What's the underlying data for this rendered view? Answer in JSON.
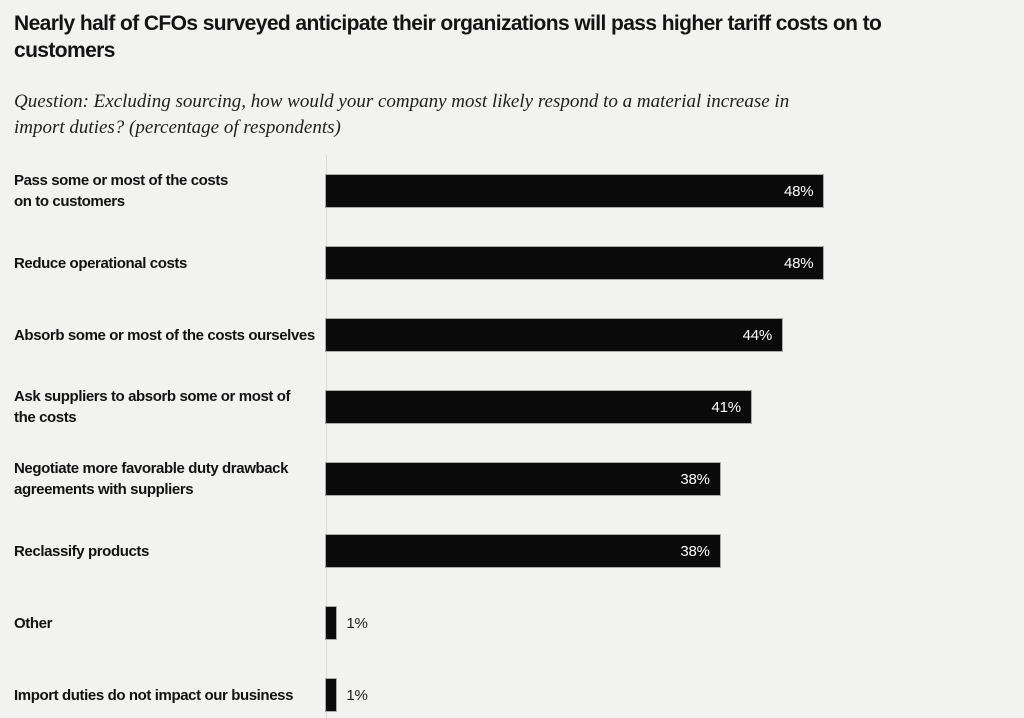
{
  "page": {
    "background_color": "#f2f2f1"
  },
  "chart_data": {
    "type": "bar",
    "orientation": "horizontal",
    "title": "Nearly half of CFOs surveyed anticipate their organizations will pass higher tariff costs on to customers",
    "title_lines": [
      "Nearly half of CFOs surveyed anticipate their organizations will pass higher tariff costs on to",
      "customers"
    ],
    "subtitle": "Question: Excluding sourcing, how would your company most likely respond to a material increase in import duties? (percentage of respondents)",
    "subtitle_lines": [
      "Question: Excluding sourcing, how would your company most likely respond to a material increase in",
      "import duties? (percentage of respondents)"
    ],
    "categories": [
      "Pass some or most of the costs on to customers",
      "Reduce operational costs",
      "Absorb some or most of the costs ourselves",
      "Ask suppliers to absorb some or most of the costs",
      "Negotiate more favorable duty drawback agreements with suppliers",
      "Reclassify products",
      "Other",
      "Import duties do not impact our business"
    ],
    "category_lines": [
      [
        "Pass some or most of the costs",
        "on to customers"
      ],
      [
        "Reduce operational costs"
      ],
      [
        "Absorb some or most of the costs ourselves"
      ],
      [
        "Ask suppliers to absorb some or most of",
        "the costs"
      ],
      [
        "Negotiate more favorable duty drawback",
        "agreements with suppliers"
      ],
      [
        "Reclassify products"
      ],
      [
        "Other"
      ],
      [
        "Import duties do not impact our business"
      ]
    ],
    "values": [
      48,
      48,
      44,
      41,
      38,
      38,
      1,
      1
    ],
    "value_suffix": "%",
    "value_labels": [
      "48%",
      "48%",
      "44%",
      "41%",
      "38%",
      "38%",
      "1%",
      "1%"
    ],
    "xlabel": "",
    "ylabel": "",
    "xlim": [
      0,
      66
    ],
    "grid": false,
    "legend": false,
    "bar_color": "#0a0a0a",
    "value_label_inside_color": "#ffffff",
    "value_label_outside_color": "#1c1c1c",
    "axis_line_color": "#d8d8d6",
    "inside_label_min_value": 5
  }
}
